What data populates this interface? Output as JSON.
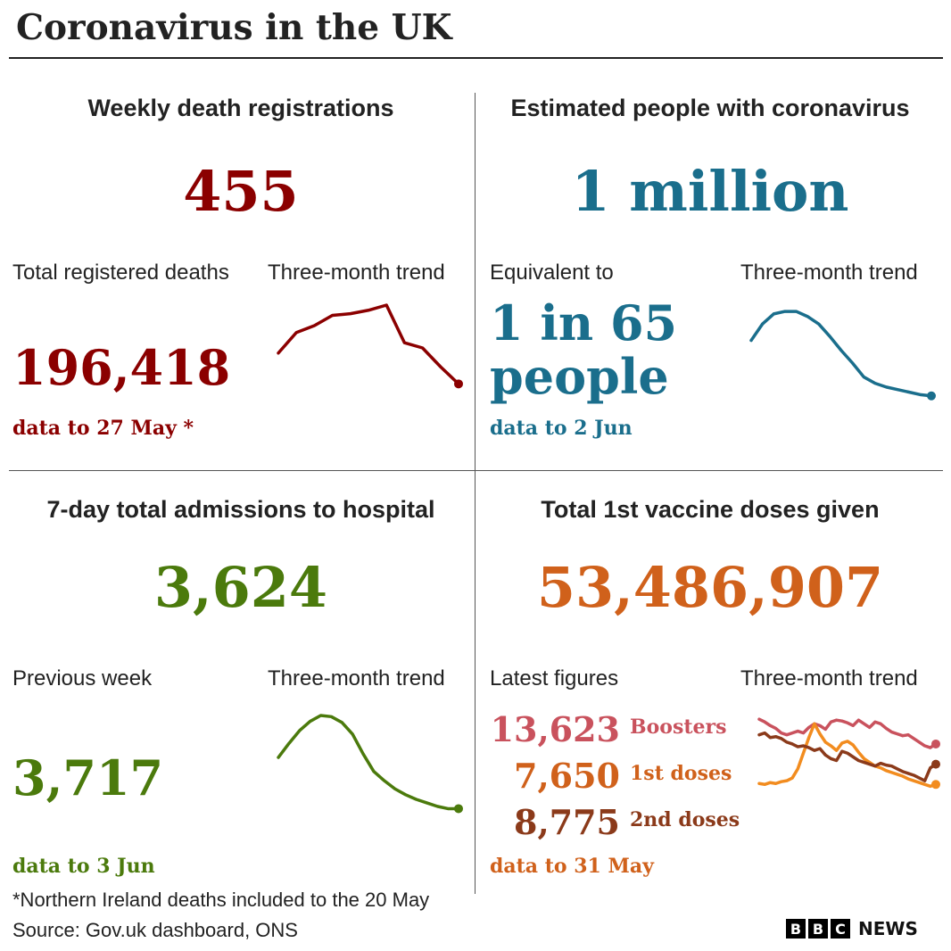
{
  "title": "Coronavirus in the UK",
  "footnote": "*Northern Ireland deaths included to the 20 May",
  "source": "Source: Gov.uk dashboard, ONS",
  "brand": {
    "letters": [
      "B",
      "B",
      "C"
    ],
    "news": "NEWS"
  },
  "panels": {
    "deaths": {
      "title": "Weekly death registrations",
      "big_value": "455",
      "total_label": "Total registered deaths",
      "total_value": "196,418",
      "trend_label": "Three-month trend",
      "note": "data to 27 May *",
      "color": "#8b0000"
    },
    "infections": {
      "title": "Estimated people with coronavirus",
      "big_value": "1 million",
      "equiv_label": "Equivalent to",
      "ratio_line1": "1 in 65",
      "ratio_line2": "people",
      "trend_label": "Three-month trend",
      "note": "data to 2 Jun",
      "color": "#1a6e8c"
    },
    "hospital": {
      "title": "7-day total admissions to hospital",
      "big_value": "3,624",
      "prev_label": "Previous week",
      "prev_value": "3,717",
      "trend_label": "Three-month trend",
      "note": "data to 3 Jun",
      "color": "#4b7a0c"
    },
    "vaccine": {
      "title": "Total 1st vaccine doses given",
      "big_value": "53,486,907",
      "latest_label": "Latest figures",
      "trend_label": "Three-month trend",
      "boosters_value": "13,623",
      "boosters_label": "Boosters",
      "first_value": "7,650",
      "first_label": "1st doses",
      "second_value": "8,775",
      "second_label": "2nd doses",
      "note": "data to 31 May",
      "colors": {
        "boosters": "#c9525d",
        "first": "#f28c1f",
        "second": "#8b3a1a"
      }
    }
  },
  "chart_data": [
    {
      "type": "line",
      "series": [
        {
          "values": [
            72,
            84,
            88,
            94,
            95,
            97,
            100,
            78,
            75,
            64,
            54
          ]
        }
      ],
      "ylim": [
        50,
        100
      ]
    },
    {
      "type": "line",
      "series": [
        {
          "values": [
            72,
            85,
            93,
            95,
            95,
            91,
            85,
            75,
            64,
            54,
            43,
            38,
            35,
            33,
            31,
            29,
            28
          ]
        }
      ],
      "ylim": [
        25,
        100
      ]
    },
    {
      "type": "line",
      "series": [
        {
          "values": [
            64,
            76,
            87,
            95,
            100,
            99,
            94,
            84,
            67,
            52,
            44,
            37,
            32,
            28,
            25,
            22,
            20,
            20
          ]
        }
      ],
      "ylim": [
        15,
        100
      ]
    },
    {
      "type": "line",
      "series": [
        {
          "values": [
            95,
            92,
            88,
            85,
            80,
            78,
            80,
            82,
            80,
            86,
            90,
            88,
            84,
            92,
            94,
            93,
            91,
            88,
            94,
            90,
            86,
            92,
            90,
            85,
            81,
            79,
            77,
            78,
            74,
            70,
            66,
            64,
            68
          ]
        },
        {
          "values": [
            25,
            24,
            26,
            25,
            27,
            28,
            31,
            41,
            58,
            75,
            90,
            79,
            70,
            66,
            61,
            69,
            71,
            67,
            59,
            52,
            48,
            44,
            42,
            39,
            37,
            35,
            33,
            30,
            28,
            26,
            24,
            22,
            24
          ]
        },
        {
          "values": [
            78,
            80,
            75,
            76,
            74,
            70,
            68,
            65,
            66,
            64,
            61,
            63,
            56,
            52,
            50,
            60,
            58,
            54,
            50,
            48,
            46,
            44,
            47,
            45,
            44,
            41,
            38,
            36,
            34,
            31,
            28,
            42,
            46
          ]
        }
      ],
      "ylim": [
        0,
        100
      ]
    }
  ]
}
